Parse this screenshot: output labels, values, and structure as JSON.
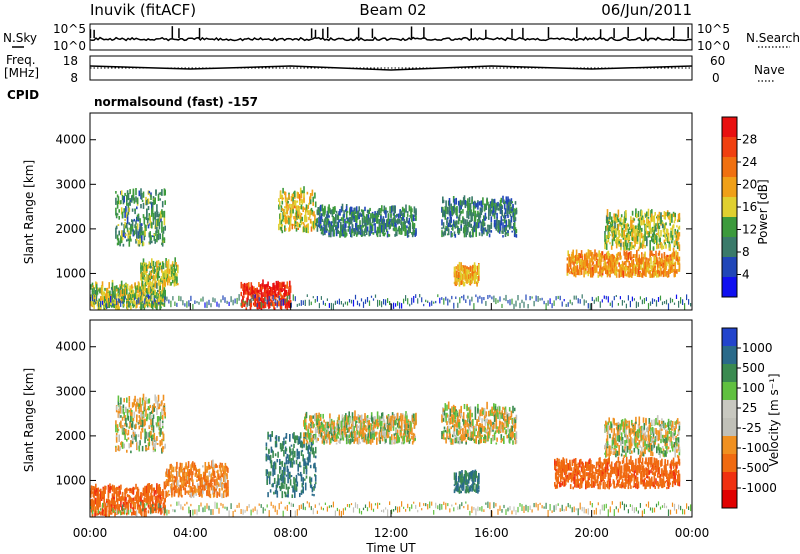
{
  "header": {
    "station": "Inuvik (fitACF)",
    "beam": "Beam 02",
    "date": "06/Jun/2011"
  },
  "strips": {
    "nsky_label": "N.Sky",
    "nsky_ticks": [
      "10^5",
      "10^0"
    ],
    "nsearch_label": "N.Search",
    "nsearch_ticks": [
      "10^5",
      "10^0"
    ],
    "freq_label_line1": "Freq.",
    "freq_label_line2": "[MHz]",
    "freq_ticks": [
      "18",
      "8"
    ],
    "nave_label": "Nave",
    "nave_ticks": [
      "60",
      "0"
    ],
    "cpid_label": "CPID",
    "cpid_text": "normalsound (fast) -157"
  },
  "colors": {
    "power_scale": [
      "#1010f0",
      "#2046b8",
      "#3a7a6a",
      "#3c9a3c",
      "#e0d030",
      "#f0a018",
      "#f07010",
      "#f04010",
      "#e81010"
    ],
    "velocity_scale": [
      "#2244cc",
      "#2a6a8a",
      "#3a8a50",
      "#60c040",
      "#c8c8c0",
      "#c0c0b8",
      "#f09020",
      "#f06a10",
      "#f03010",
      "#e00000"
    ]
  },
  "chart_data": [
    {
      "type": "heatmap",
      "panel": "power",
      "xlabel": "",
      "ylabel": "Slant Range [km]",
      "x_ticks": [
        "00:00",
        "04:00",
        "08:00",
        "12:00",
        "16:00",
        "20:00",
        "00:00"
      ],
      "y_ticks": [
        "1000",
        "2000",
        "3000",
        "4000"
      ],
      "ylim": [
        180,
        4600
      ],
      "colorbar_label": "Power [dB]",
      "colorbar_ticks": [
        "4",
        "8",
        "12",
        "16",
        "20",
        "24",
        "28"
      ],
      "colorbar_range": [
        0,
        30
      ],
      "echo_regions": [
        {
          "t_start": 0.0,
          "t_end": 3.0,
          "r_min": 180,
          "r_max": 700,
          "level": 14
        },
        {
          "t_start": 1.0,
          "t_end": 3.0,
          "r_min": 1600,
          "r_max": 2800,
          "level": 10
        },
        {
          "t_start": 2.0,
          "t_end": 3.5,
          "r_min": 700,
          "r_max": 1200,
          "level": 14
        },
        {
          "t_start": 6.0,
          "t_end": 8.0,
          "r_min": 180,
          "r_max": 700,
          "level": 28
        },
        {
          "t_start": 7.5,
          "t_end": 9.0,
          "r_min": 1900,
          "r_max": 2800,
          "level": 16
        },
        {
          "t_start": 9.0,
          "t_end": 13.0,
          "r_min": 1800,
          "r_max": 2400,
          "level": 8
        },
        {
          "t_start": 14.0,
          "t_end": 17.0,
          "r_min": 1800,
          "r_max": 2600,
          "level": 8
        },
        {
          "t_start": 14.5,
          "t_end": 15.5,
          "r_min": 700,
          "r_max": 1100,
          "level": 18
        },
        {
          "t_start": 19.0,
          "t_end": 23.5,
          "r_min": 900,
          "r_max": 1400,
          "level": 20
        },
        {
          "t_start": 20.5,
          "t_end": 23.5,
          "r_min": 1500,
          "r_max": 2300,
          "level": 14
        }
      ]
    },
    {
      "type": "heatmap",
      "panel": "velocity",
      "xlabel": "Time UT",
      "ylabel": "Slant Range [km]",
      "x_ticks": [
        "00:00",
        "04:00",
        "08:00",
        "12:00",
        "16:00",
        "20:00",
        "00:00"
      ],
      "y_ticks": [
        "1000",
        "2000",
        "3000",
        "4000"
      ],
      "ylim": [
        180,
        4600
      ],
      "colorbar_label": "Velocity [m s⁻¹]",
      "colorbar_ticks": [
        "1000",
        "500",
        "100",
        "25",
        "-25",
        "-100",
        "-500",
        "-1000"
      ],
      "echo_regions": [
        {
          "t_start": 0.0,
          "t_end": 3.0,
          "r_min": 180,
          "r_max": 800,
          "velocity": -300
        },
        {
          "t_start": 1.0,
          "t_end": 3.0,
          "r_min": 1600,
          "r_max": 2800,
          "velocity": 0
        },
        {
          "t_start": 3.0,
          "t_end": 5.5,
          "r_min": 600,
          "r_max": 1300,
          "velocity": -150
        },
        {
          "t_start": 7.0,
          "t_end": 9.0,
          "r_min": 600,
          "r_max": 2000,
          "velocity": 300
        },
        {
          "t_start": 8.5,
          "t_end": 13.0,
          "r_min": 1800,
          "r_max": 2400,
          "velocity": 0
        },
        {
          "t_start": 14.0,
          "t_end": 17.0,
          "r_min": 1800,
          "r_max": 2600,
          "velocity": 0
        },
        {
          "t_start": 14.5,
          "t_end": 15.5,
          "r_min": 700,
          "r_max": 1100,
          "velocity": 300
        },
        {
          "t_start": 18.5,
          "t_end": 23.5,
          "r_min": 800,
          "r_max": 1400,
          "velocity": -300
        },
        {
          "t_start": 20.5,
          "t_end": 23.5,
          "r_min": 1500,
          "r_max": 2300,
          "velocity": 0
        }
      ]
    }
  ]
}
